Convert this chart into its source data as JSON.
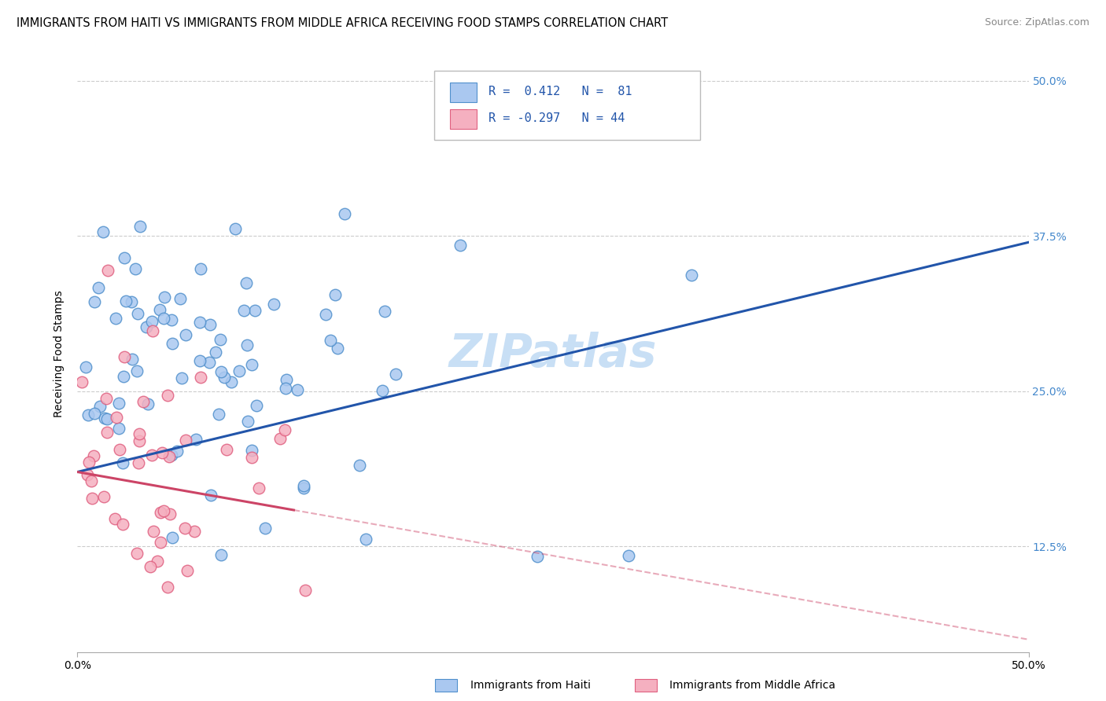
{
  "title": "IMMIGRANTS FROM HAITI VS IMMIGRANTS FROM MIDDLE AFRICA RECEIVING FOOD STAMPS CORRELATION CHART",
  "source": "Source: ZipAtlas.com",
  "ylabel": "Receiving Food Stamps",
  "ytick_values": [
    0.125,
    0.25,
    0.375,
    0.5
  ],
  "ytick_labels": [
    "12.5%",
    "25.0%",
    "37.5%",
    "50.0%"
  ],
  "xmin": 0.0,
  "xmax": 0.5,
  "ymin": 0.04,
  "ymax": 0.52,
  "legend_line1": "R =  0.412   N =  81",
  "legend_line2": "R = -0.297   N = 44",
  "color_haiti_fill": "#aac8f0",
  "color_haiti_edge": "#5090cc",
  "color_haiti_line": "#2255aa",
  "color_africa_fill": "#f5b0c0",
  "color_africa_edge": "#e06080",
  "color_africa_line": "#cc4466",
  "color_right_ticks": "#4488cc",
  "watermark_color": "#c8dff5",
  "grid_color": "#cccccc",
  "title_fontsize": 10.5,
  "source_fontsize": 9,
  "tick_fontsize": 10,
  "legend_fontsize": 11,
  "ylabel_fontsize": 10,
  "scatter_size": 110
}
